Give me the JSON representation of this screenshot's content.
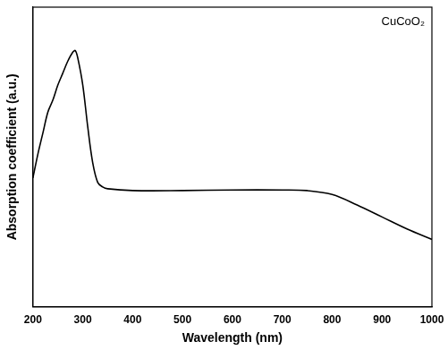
{
  "chart_data": {
    "type": "line",
    "annotation": "CuCoO₂",
    "x_label": "Wavelength (nm)",
    "y_label": "Absorption coefficient (a.u.)",
    "x": [
      200,
      210,
      220,
      230,
      240,
      250,
      260,
      270,
      280,
      285,
      290,
      300,
      310,
      320,
      330,
      340,
      350,
      400,
      500,
      600,
      700,
      750,
      800,
      850,
      900,
      950,
      1000
    ],
    "values": [
      43,
      51,
      58,
      65,
      69,
      74,
      78,
      82,
      85,
      85.5,
      83,
      74,
      60,
      48,
      41.5,
      40,
      39.4,
      38.8,
      38.8,
      39,
      39,
      38.8,
      37.5,
      34,
      30,
      26,
      22.5
    ],
    "color": "#000000",
    "xlim": [
      200,
      1000
    ],
    "xticks": [
      200,
      300,
      400,
      500,
      600,
      700,
      800,
      900,
      1000
    ],
    "ylim": [
      0,
      100
    ],
    "tick_labels": "x",
    "grid": false
  }
}
